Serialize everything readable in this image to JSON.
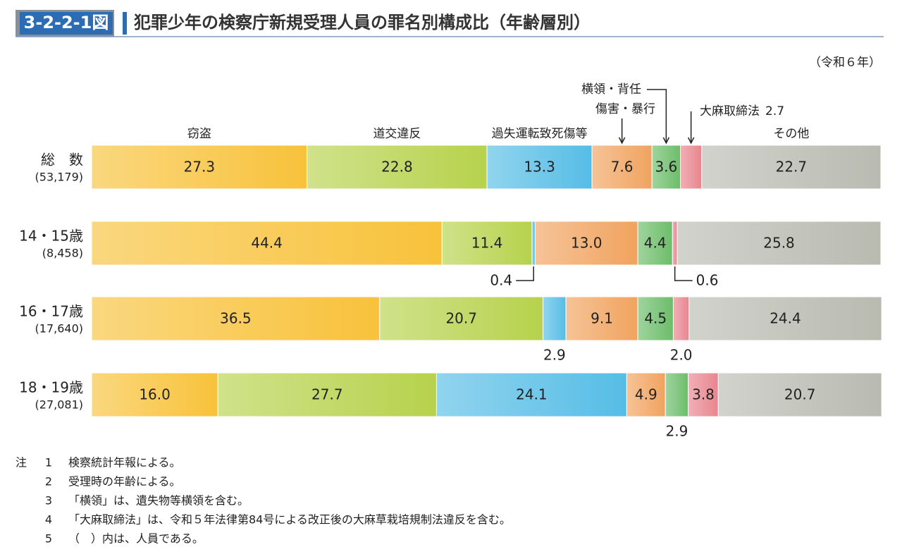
{
  "badge": "3-2-2-1図",
  "chart_data": {
    "type": "bar",
    "orientation": "horizontal",
    "stacked": true,
    "title": "犯罪少年の検察庁新規受理人員の罪名別構成比（年齢層別）",
    "subtitle": "（令和６年）",
    "categories": [
      "総　数",
      "14・15歳",
      "16・17歳",
      "18・19歳"
    ],
    "sublabels": [
      "(53,179)",
      "(8,458)",
      "(17,640)",
      "(27,081)"
    ],
    "xlim": [
      0,
      100
    ],
    "series": [
      {
        "name": "窃盗",
        "color": "#f8c23a",
        "values": [
          27.3,
          44.4,
          36.5,
          16.0
        ],
        "value_labels": [
          "27.3",
          "44.4",
          "36.5",
          "16.0"
        ]
      },
      {
        "name": "道交違反",
        "color": "#b7d24c",
        "values": [
          22.8,
          11.4,
          20.7,
          27.7
        ],
        "value_labels": [
          "22.8",
          "11.4",
          "20.7",
          "27.7"
        ]
      },
      {
        "name": "過失運転致死傷等",
        "color": "#56bde6",
        "values": [
          13.3,
          0.4,
          2.9,
          24.1
        ],
        "value_labels": [
          "13.3",
          "0.4",
          "2.9",
          "24.1"
        ]
      },
      {
        "name": "傷害・暴行",
        "color": "#f1a35f",
        "values": [
          7.6,
          13.0,
          9.1,
          4.9
        ],
        "value_labels": [
          "7.6",
          "13.0",
          "9.1",
          "4.9"
        ]
      },
      {
        "name": "横領・背任",
        "color": "#6cbd6a",
        "values": [
          3.6,
          4.4,
          4.5,
          2.9
        ],
        "value_labels": [
          "3.6",
          "4.4",
          "4.5",
          "2.9"
        ]
      },
      {
        "name": "大麻取締法",
        "color": "#e9858f",
        "values": [
          2.7,
          0.6,
          2.0,
          3.8
        ],
        "value_labels": [
          "2.7",
          "0.6",
          "2.0",
          "3.8"
        ]
      },
      {
        "name": "その他",
        "color": "#b9bbb1",
        "values": [
          22.7,
          25.8,
          24.4,
          20.7
        ],
        "value_labels": [
          "22.7",
          "25.8",
          "24.4",
          "20.7"
        ]
      }
    ]
  },
  "notes": {
    "label": "注",
    "items": [
      {
        "number": 1,
        "text": "検察統計年報による。"
      },
      {
        "number": 2,
        "text": "受理時の年齢による。"
      },
      {
        "number": 3,
        "text": "「横領」は、遺失物等横領を含む。"
      },
      {
        "number": 4,
        "text": "「大麻取締法」は、令和５年法律第84号による改正後の大麻草栽培規制法違反を含む。"
      },
      {
        "number": 5,
        "text": "（　）内は、人員である。"
      }
    ]
  }
}
